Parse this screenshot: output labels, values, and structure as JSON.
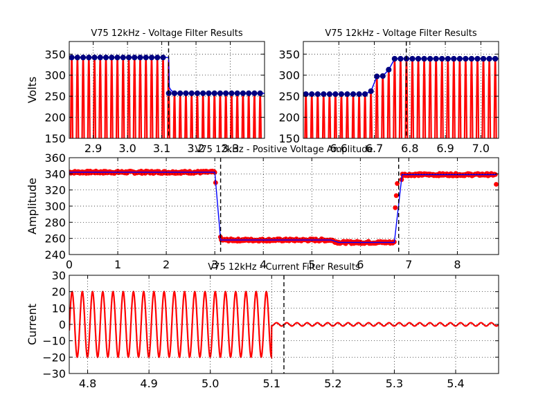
{
  "chart_data": [
    {
      "id": "voltage_filter_left",
      "type": "line",
      "title": "V75 12kHz - Voltage Filter Results",
      "xlabel": "",
      "ylabel": "Volts",
      "xlim": [
        2.83,
        3.4
      ],
      "ylim": [
        150,
        380
      ],
      "xticks": [
        2.9,
        3.0,
        3.1,
        3.2,
        3.3
      ],
      "xtick_labels": [
        "2.9",
        "3.0",
        "3.1",
        "3.2",
        "3.3"
      ],
      "yticks": [
        150,
        200,
        250,
        300,
        350
      ],
      "ytick_labels": [
        "150",
        "200",
        "250",
        "300",
        "350"
      ],
      "grid": true,
      "series": [
        {
          "role": "peaks",
          "marker": "circle",
          "color": "#000080",
          "x_range": [
            2.837,
            3.114
          ],
          "values_before": 342,
          "step_x": 3.12,
          "values_after": 257
        },
        {
          "role": "raw_signal",
          "color": "#ff0000",
          "frequency_hz": 60,
          "amplitude_before": 342,
          "amplitude_after": 257
        }
      ],
      "vline": 3.12,
      "colors": {
        "raw": "#ff0000",
        "filtered": "#0000ff",
        "peaks": "#000080"
      }
    },
    {
      "id": "voltage_filter_right",
      "type": "line",
      "title": "V75 12kHz - Voltage Filter Results",
      "xlabel": "",
      "ylabel": "",
      "xlim": [
        6.5,
        7.05
      ],
      "ylim": [
        150,
        380
      ],
      "xticks": [
        6.6,
        6.7,
        6.8,
        6.9,
        7.0
      ],
      "xtick_labels": [
        "6.6",
        "6.7",
        "6.8",
        "6.9",
        "7.0"
      ],
      "yticks": [
        150,
        200,
        250,
        300,
        350
      ],
      "ytick_labels": [
        "150",
        "200",
        "250",
        "300",
        "350"
      ],
      "grid": true,
      "series": [
        {
          "role": "peaks",
          "marker": "circle",
          "color": "#000080",
          "values_before": 255,
          "values_transition": [
            262,
            297,
            298,
            313
          ],
          "values_after": 339
        }
      ],
      "vline": 6.79,
      "colors": {
        "raw": "#ff0000",
        "filtered": "#0000ff",
        "peaks": "#000080"
      }
    },
    {
      "id": "positive_voltage_amplitude",
      "type": "line",
      "title": "V75 12kHz - Positive Voltage Amplitude",
      "xlabel": "",
      "ylabel": "Amplitude",
      "xlim": [
        0,
        8.85
      ],
      "ylim": [
        240,
        360
      ],
      "xticks": [
        0,
        1,
        2,
        3,
        4,
        5,
        6,
        7,
        8
      ],
      "xtick_labels": [
        "0",
        "1",
        "2",
        "3",
        "4",
        "5",
        "6",
        "7",
        "8"
      ],
      "yticks": [
        240,
        260,
        280,
        300,
        320,
        340,
        360
      ],
      "ytick_labels": [
        "240",
        "260",
        "280",
        "300",
        "320",
        "340",
        "360"
      ],
      "grid": true,
      "segments": [
        {
          "x": [
            0.0,
            3.05
          ],
          "amplitude": 342
        },
        {
          "x": [
            3.12,
            5.4
          ],
          "amplitude": 258
        },
        {
          "x": [
            5.4,
            6.75
          ],
          "amplitude": 255
        },
        {
          "x": [
            6.85,
            8.8
          ],
          "amplitude": 339
        }
      ],
      "outlier_points": [
        {
          "x": 6.72,
          "y": 298
        },
        {
          "x": 6.74,
          "y": 313
        },
        {
          "x": 6.76,
          "y": 328
        },
        {
          "x": 8.8,
          "y": 327
        }
      ],
      "vlines": [
        3.12,
        6.79
      ],
      "colors": {
        "points": "#ff0000",
        "fit": "#0000ff"
      }
    },
    {
      "id": "current_filter",
      "type": "line",
      "title": "V75 12kHz - Current Filter Results",
      "xlabel": "",
      "ylabel": "Current",
      "xlim": [
        4.77,
        5.47
      ],
      "ylim": [
        -30,
        30
      ],
      "xticks": [
        4.8,
        4.9,
        5.0,
        5.1,
        5.2,
        5.3,
        5.4
      ],
      "xtick_labels": [
        "4.8",
        "4.9",
        "5.0",
        "5.1",
        "5.2",
        "5.3",
        "5.4"
      ],
      "yticks": [
        -30,
        -20,
        -10,
        0,
        10,
        20,
        30
      ],
      "ytick_labels": [
        "−30",
        "−20",
        "−10",
        "0",
        "10",
        "20",
        "30"
      ],
      "grid": true,
      "series": [
        {
          "role": "current_signal",
          "color": "#ff0000",
          "frequency_hz": 60,
          "amplitude_before": 20,
          "x_step": 5.1,
          "amplitude_after": 1
        }
      ],
      "vline": 5.12,
      "colors": {
        "signal": "#ff0000"
      }
    }
  ]
}
